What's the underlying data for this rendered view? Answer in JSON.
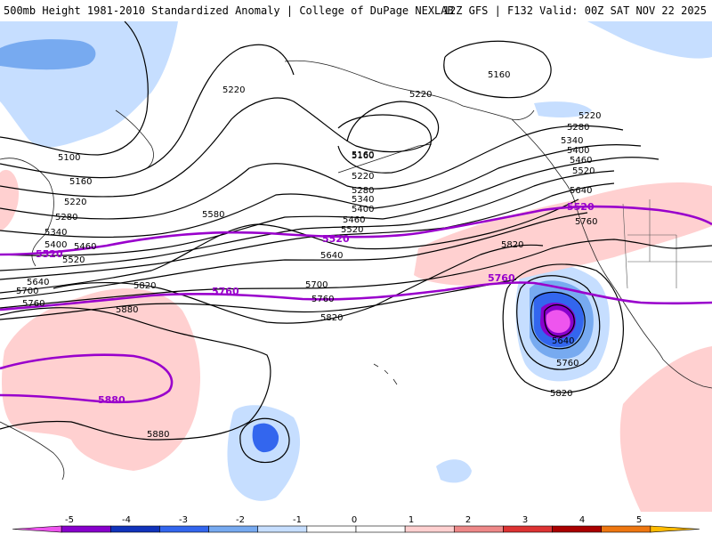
{
  "header": {
    "title_left": "500mb Height 1981-2010 Standardized Anomaly | College of DuPage NEXLAB",
    "title_right": "12Z GFS | F132 Valid: 00Z SAT NOV 22 2025"
  },
  "map": {
    "contour_labels": [
      {
        "text": "5220"
      },
      {
        "text": "5220"
      },
      {
        "text": "5160"
      },
      {
        "text": "5100"
      },
      {
        "text": "5160"
      },
      {
        "text": "5220"
      },
      {
        "text": "5280"
      },
      {
        "text": "5340"
      },
      {
        "text": "5400"
      },
      {
        "text": "5460"
      },
      {
        "text": "5520"
      },
      {
        "text": "5580"
      },
      {
        "text": "5640"
      },
      {
        "text": "5700"
      },
      {
        "text": "5760"
      },
      {
        "text": "5820"
      },
      {
        "text": "5880"
      },
      {
        "text": "5880"
      },
      {
        "text": "5160"
      },
      {
        "text": "5220"
      },
      {
        "text": "5280"
      },
      {
        "text": "5340"
      },
      {
        "text": "5400"
      },
      {
        "text": "5460"
      },
      {
        "text": "5520"
      },
      {
        "text": "5640"
      },
      {
        "text": "5700"
      },
      {
        "text": "5760"
      },
      {
        "text": "5820"
      },
      {
        "text": "5220"
      },
      {
        "text": "5280"
      },
      {
        "text": "5340"
      },
      {
        "text": "5400"
      },
      {
        "text": "5460"
      },
      {
        "text": "5520"
      },
      {
        "text": "5640"
      },
      {
        "text": "5760"
      },
      {
        "text": "5820"
      },
      {
        "text": "5640"
      },
      {
        "text": "5760"
      },
      {
        "text": "5820"
      },
      {
        "text": "5160"
      }
    ],
    "highlight_labels": [
      {
        "text": "5520"
      },
      {
        "text": "5520"
      },
      {
        "text": "5520"
      },
      {
        "text": "5760"
      },
      {
        "text": "5760"
      },
      {
        "text": "5880"
      }
    ],
    "highlight_color": "#9900cc"
  },
  "colorbar": {
    "ticks": [
      "-5",
      "-4",
      "-3",
      "-2",
      "-1",
      "0",
      "1",
      "2",
      "3",
      "4",
      "5"
    ],
    "colors": [
      "#ee55ee",
      "#8800cc",
      "#1133bb",
      "#3366ee",
      "#77aaf0",
      "#c6deff",
      "#ffffff",
      "#ffffff",
      "#ffd0d0",
      "#ee8888",
      "#dd3333",
      "#aa0000",
      "#ee7711",
      "#ffbb00"
    ]
  }
}
